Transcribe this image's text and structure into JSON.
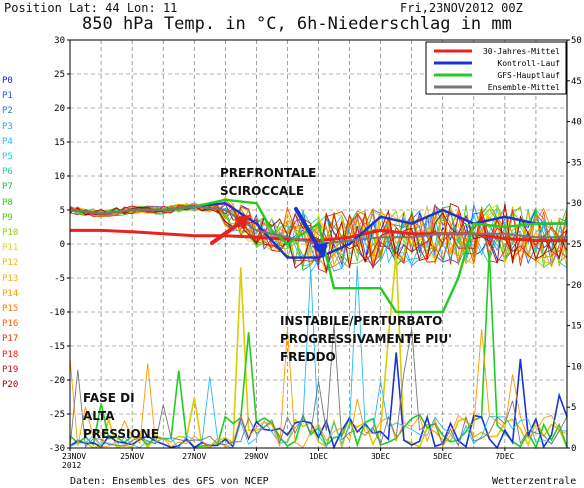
{
  "header": {
    "position": "Position   Lat: 44 Lon: 11",
    "title": "850 hPa Temp. in °C, 6h-Niederschlag in mm",
    "datetime": "Fri,23NOV2012 00Z"
  },
  "footer": {
    "source": "Daten: Ensembles des GFS von NCEP",
    "brand": "Wetterzentrale"
  },
  "annotations": {
    "a1": [
      "PREFRONTALE",
      "SCIROCCALE"
    ],
    "a2": [
      "INSTABILE/PERTURBATO",
      "PROGRESSIVAMENTE PIU'",
      "FREDDO"
    ],
    "a3": [
      "FASE DI",
      "ALTA",
      "PRESSIONE"
    ]
  },
  "chart_data": {
    "type": "line",
    "title": "850 hPa Temp. in °C, 6h-Niederschlag in mm",
    "x_tick_labels": [
      "23NOV\n2012",
      "25NOV",
      "27NOV",
      "29NOV",
      "1DEC",
      "3DEC",
      "5DEC",
      "7DEC"
    ],
    "x_tick_days": [
      0,
      2,
      4,
      6,
      8,
      10,
      12,
      14
    ],
    "x_range_days": [
      0,
      16
    ],
    "ylim_left": [
      -30,
      30
    ],
    "yticks_left": [
      30,
      25,
      20,
      15,
      10,
      5,
      0,
      -5,
      -10,
      -15,
      -20,
      -25,
      -30
    ],
    "ylim_right": [
      0,
      50
    ],
    "yticks_right": [
      50,
      45,
      40,
      35,
      30,
      25,
      20,
      15,
      10,
      5,
      0
    ],
    "grid": true,
    "legend_position": "top-right",
    "legend": [
      {
        "name": "30-Jahres-Mittel",
        "color": "#e8231f"
      },
      {
        "name": "Kontroll-Lauf",
        "color": "#1a33d6"
      },
      {
        "name": "GFS-Hauptlauf",
        "color": "#22cc22"
      },
      {
        "name": "Ensemble-Mittel",
        "color": "#777777"
      }
    ],
    "member_labels": [
      "P0",
      "P1",
      "P2",
      "P3",
      "P4",
      "P5",
      "P6",
      "P7",
      "P8",
      "P9",
      "P10",
      "P11",
      "P12",
      "P13",
      "P14",
      "P15",
      "P16",
      "P17",
      "P18",
      "P19",
      "P20"
    ],
    "member_colors": [
      "#1a1aff",
      "#2255ff",
      "#2f6fff",
      "#2c9cff",
      "#22bbff",
      "#22ccee",
      "#22ccaa",
      "#22bb44",
      "#33cc22",
      "#55cc11",
      "#99cc00",
      "#dddd00",
      "#eebb00",
      "#ffaa00",
      "#ff9900",
      "#ff7700",
      "#ff5500",
      "#ee3300",
      "#dd2200",
      "#cc1111",
      "#aa0000"
    ],
    "series": [
      {
        "name": "30-Jahres-Mittel",
        "color": "#e8231f",
        "x": [
          0,
          1,
          2,
          3,
          4,
          5,
          6,
          7,
          8,
          9,
          10,
          11,
          12,
          13,
          14,
          15,
          16
        ],
        "y": [
          2,
          2,
          1.8,
          1.5,
          1.2,
          1.2,
          1,
          0.7,
          0.5,
          1,
          2,
          1.5,
          1.5,
          1.5,
          0.8,
          0.5,
          0.5
        ]
      },
      {
        "name": "Kontroll-Lauf",
        "color": "#1a33d6",
        "x": [
          0,
          1,
          2,
          3,
          4,
          5,
          6,
          7,
          8,
          9,
          10,
          11,
          12,
          13,
          14,
          15,
          16
        ],
        "y": [
          5,
          4.5,
          5,
          5,
          5.5,
          6,
          3,
          -2,
          -2,
          0,
          4,
          3,
          5,
          3,
          4,
          3,
          3
        ]
      },
      {
        "name": "GFS-Hauptlauf",
        "color": "#22cc22",
        "x": [
          0,
          1,
          2,
          3,
          4,
          5,
          6,
          6.5,
          7,
          8,
          8.5,
          9,
          10,
          10.5,
          11,
          12,
          12.5,
          13,
          14,
          15,
          16
        ],
        "y": [
          5,
          4.5,
          5,
          5,
          5.5,
          6.5,
          6,
          2,
          0,
          3,
          -6.5,
          -6.5,
          -6.5,
          -10,
          -10,
          -10,
          -5,
          3,
          2.5,
          3,
          3
        ]
      },
      {
        "name": "Ensemble-Mittel",
        "color": "#777777",
        "x": [
          0,
          1,
          2,
          3,
          4,
          5,
          6,
          7,
          8,
          9,
          10,
          11,
          12,
          13,
          14,
          15,
          16
        ],
        "y": [
          5,
          4.5,
          5,
          5,
          5.5,
          5,
          2,
          1,
          0,
          0.5,
          1,
          1,
          1.5,
          1.5,
          1.5,
          1,
          1
        ]
      }
    ],
    "precipitation_scale": "right axis (mm)"
  }
}
